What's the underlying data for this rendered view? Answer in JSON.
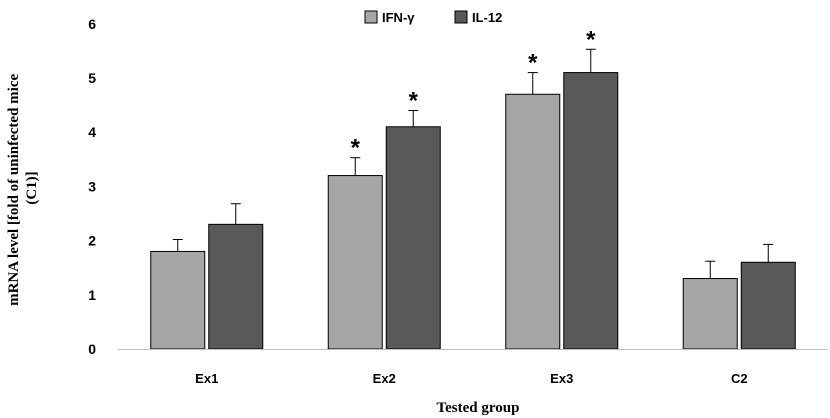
{
  "chart_data": {
    "type": "bar",
    "categories": [
      "Ex1",
      "Ex2",
      "Ex3",
      "C2"
    ],
    "series": [
      {
        "name": "IFN-γ",
        "values": [
          1.8,
          3.2,
          4.7,
          1.3
        ],
        "errors": [
          0.22,
          0.33,
          0.4,
          0.32
        ],
        "significant": [
          false,
          true,
          true,
          false
        ],
        "color": "#a6a6a6"
      },
      {
        "name": "IL-12",
        "values": [
          2.3,
          4.1,
          5.1,
          1.6
        ],
        "errors": [
          0.38,
          0.3,
          0.43,
          0.33
        ],
        "significant": [
          false,
          true,
          true,
          false
        ],
        "color": "#595959"
      }
    ],
    "xlabel": "Tested group",
    "ylabel_lines": [
      "mRNA level [fold of uninfected mice",
      "(C1)]"
    ],
    "ylim": [
      0,
      6
    ],
    "yticks": [
      0,
      1,
      2,
      3,
      4,
      5,
      6
    ],
    "grid": false,
    "legend": "top-center",
    "significance_marker": "*"
  }
}
